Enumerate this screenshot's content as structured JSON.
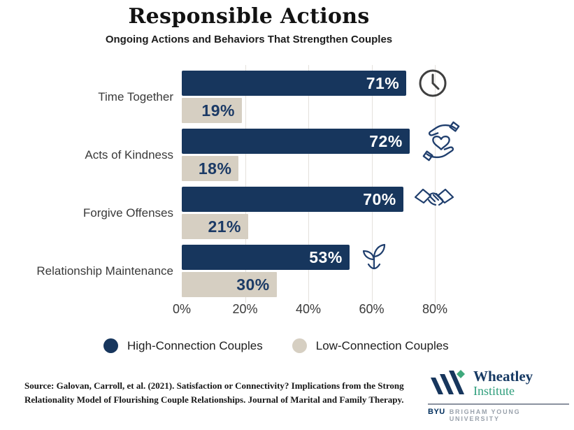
{
  "header": {
    "title": "Responsible Actions",
    "subtitle": "Ongoing Actions and Behaviors That Strengthen Couples"
  },
  "chart_data": {
    "type": "bar",
    "orientation": "horizontal",
    "title": "Responsible Actions",
    "subtitle": "Ongoing Actions and Behaviors That Strengthen Couples",
    "categories": [
      "Time Together",
      "Acts of Kindness",
      "Forgive Offenses",
      "Relationship Maintenance"
    ],
    "series": [
      {
        "name": "High-Connection Couples",
        "color": "#17365d",
        "values": [
          71,
          72,
          70,
          53
        ]
      },
      {
        "name": "Low-Connection Couples",
        "color": "#d6cfc2",
        "values": [
          19,
          18,
          21,
          30
        ]
      }
    ],
    "value_suffix": "%",
    "xlim": [
      0,
      80
    ],
    "x_tick_values": [
      0,
      20,
      40,
      60,
      80
    ],
    "x_ticks": [
      "0%",
      "20%",
      "40%",
      "60%",
      "80%"
    ],
    "grid": "vertical",
    "legend_position": "bottom",
    "row_icons": [
      "clock-icon",
      "hands-heart-icon",
      "handshake-icon",
      "plant-icon"
    ]
  },
  "colors": {
    "high_bar": "#17365d",
    "low_bar": "#d6cfc2",
    "low_value_text": "#1b3a66",
    "icon_navy": "#1f3e6d",
    "icon_gray": "#3f3f3f",
    "gridline": "#e4e1dc",
    "logo_green": "#3fa97c",
    "logo_teal_text": "#2f9e7c",
    "byu_navy": "#002e5d"
  },
  "footer": {
    "source_line1": "Source: Galovan, Carroll, et al. (2021). Satisfaction or Connectivity? Implications from the Strong",
    "source_line2": "Relationality Model of Flourishing Couple Relationships. Journal of Marital and Family Therapy."
  },
  "logo": {
    "name_line1": "Wheatley",
    "name_line2": "Institute",
    "byu": "BYU",
    "university": "BRIGHAM YOUNG UNIVERSITY"
  }
}
